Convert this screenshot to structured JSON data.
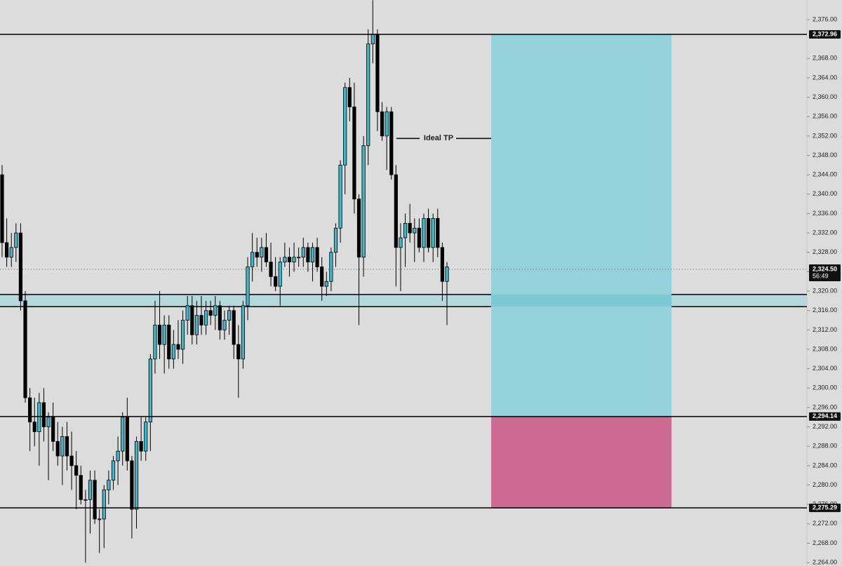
{
  "chart_data": {
    "type": "candlestick",
    "ylim": [
      2263.3,
      2380.05
    ],
    "yticks": [
      {
        "value": 2264,
        "label": "2,264.00"
      },
      {
        "value": 2268,
        "label": "2,268.00"
      },
      {
        "value": 2272,
        "label": "2,272.00"
      },
      {
        "value": 2276,
        "label": "2,276.00"
      },
      {
        "value": 2280,
        "label": "2,280.00"
      },
      {
        "value": 2284,
        "label": "2,284.00"
      },
      {
        "value": 2288,
        "label": "2,288.00"
      },
      {
        "value": 2292,
        "label": "2,292.00"
      },
      {
        "value": 2296,
        "label": "2,296.00"
      },
      {
        "value": 2300,
        "label": "2,300.00"
      },
      {
        "value": 2304,
        "label": "2,304.00"
      },
      {
        "value": 2308,
        "label": "2,308.00"
      },
      {
        "value": 2312,
        "label": "2,312.00"
      },
      {
        "value": 2316,
        "label": "2,316.00"
      },
      {
        "value": 2320,
        "label": "2,320.00"
      },
      {
        "value": 2324,
        "label": "2,324.00"
      },
      {
        "value": 2328,
        "label": "2,328.00"
      },
      {
        "value": 2332,
        "label": "2,332.00"
      },
      {
        "value": 2336,
        "label": "2,336.00"
      },
      {
        "value": 2340,
        "label": "2,340.00"
      },
      {
        "value": 2344,
        "label": "2,344.00"
      },
      {
        "value": 2348,
        "label": "2,348.00"
      },
      {
        "value": 2352,
        "label": "2,352.00"
      },
      {
        "value": 2356,
        "label": "2,356.00"
      },
      {
        "value": 2360,
        "label": "2,360.00"
      },
      {
        "value": 2364,
        "label": "2,364.00"
      },
      {
        "value": 2368,
        "label": "2,368.00"
      },
      {
        "value": 2376,
        "label": "2,376.00"
      }
    ],
    "up_color": "#3fb6c9",
    "down_color": "#000000",
    "candles": [
      [
        2344,
        2346,
        2327,
        2330
      ],
      [
        2330,
        2335,
        2325,
        2327
      ],
      [
        2327,
        2332,
        2325,
        2329
      ],
      [
        2329,
        2334,
        2326,
        2332
      ],
      [
        2332,
        2334,
        2316,
        2318
      ],
      [
        2318,
        2320,
        2297,
        2298
      ],
      [
        2298,
        2300,
        2287,
        2293
      ],
      [
        2293,
        2298,
        2288,
        2291
      ],
      [
        2291,
        2299,
        2284,
        2297
      ],
      [
        2297,
        2300,
        2289,
        2292
      ],
      [
        2292,
        2295,
        2281,
        2294
      ],
      [
        2294,
        2297,
        2287,
        2289
      ],
      [
        2289,
        2293,
        2284,
        2286
      ],
      [
        2286,
        2292,
        2280,
        2290
      ],
      [
        2290,
        2293,
        2283,
        2286
      ],
      [
        2286,
        2291,
        2279,
        2284
      ],
      [
        2284,
        2287,
        2275,
        2282
      ],
      [
        2282,
        2284,
        2276,
        2277
      ],
      [
        2277,
        2279,
        2264,
        2277
      ],
      [
        2277,
        2283,
        2270,
        2281
      ],
      [
        2281,
        2283,
        2272,
        2273
      ],
      [
        2273,
        2275,
        2266,
        2273
      ],
      [
        2273,
        2280,
        2267,
        2279
      ],
      [
        2279,
        2283,
        2276,
        2281
      ],
      [
        2281,
        2286,
        2279,
        2285
      ],
      [
        2285,
        2290,
        2280,
        2287
      ],
      [
        2287,
        2295,
        2284,
        2294
      ],
      [
        2294,
        2298,
        2283,
        2285
      ],
      [
        2285,
        2286,
        2269,
        2275
      ],
      [
        2275,
        2290,
        2271,
        2289
      ],
      [
        2289,
        2294,
        2285,
        2287
      ],
      [
        2287,
        2294,
        2285,
        2293
      ],
      [
        2293,
        2307,
        2287,
        2306
      ],
      [
        2306,
        2318,
        2303,
        2313
      ],
      [
        2313,
        2320,
        2306,
        2309
      ],
      [
        2309,
        2315,
        2303,
        2313
      ],
      [
        2313,
        2315,
        2304,
        2306
      ],
      [
        2306,
        2312,
        2304,
        2309
      ],
      [
        2309,
        2314,
        2306,
        2308
      ],
      [
        2308,
        2316,
        2305,
        2314
      ],
      [
        2314,
        2319,
        2311,
        2317
      ],
      [
        2317,
        2319,
        2309,
        2311
      ],
      [
        2311,
        2318,
        2309,
        2315
      ],
      [
        2315,
        2319,
        2311,
        2313
      ],
      [
        2313,
        2318,
        2311,
        2316
      ],
      [
        2316,
        2318,
        2313,
        2315
      ],
      [
        2315,
        2319,
        2312,
        2317
      ],
      [
        2317,
        2318,
        2310,
        2312
      ],
      [
        2312,
        2316,
        2310,
        2314
      ],
      [
        2314,
        2317,
        2311,
        2316
      ],
      [
        2316,
        2317,
        2306,
        2309
      ],
      [
        2309,
        2313,
        2298,
        2306
      ],
      [
        2306,
        2318,
        2304,
        2317
      ],
      [
        2317,
        2327,
        2314,
        2325
      ],
      [
        2325,
        2332,
        2322,
        2328
      ],
      [
        2328,
        2331,
        2325,
        2327
      ],
      [
        2327,
        2331,
        2324,
        2329
      ],
      [
        2329,
        2332,
        2325,
        2326
      ],
      [
        2326,
        2330,
        2321,
        2323
      ],
      [
        2323,
        2327,
        2320,
        2321
      ],
      [
        2321,
        2327,
        2317,
        2326
      ],
      [
        2326,
        2330,
        2325,
        2327
      ],
      [
        2327,
        2329,
        2323,
        2326
      ],
      [
        2326,
        2330,
        2324,
        2327
      ],
      [
        2327,
        2329,
        2325,
        2327
      ],
      [
        2327,
        2331,
        2325,
        2329
      ],
      [
        2329,
        2330,
        2324,
        2326
      ],
      [
        2326,
        2330,
        2322,
        2329
      ],
      [
        2329,
        2331,
        2324,
        2325
      ],
      [
        2325,
        2327,
        2318,
        2321
      ],
      [
        2321,
        2324,
        2319,
        2322
      ],
      [
        2322,
        2329,
        2320,
        2328
      ],
      [
        2328,
        2334,
        2325,
        2333
      ],
      [
        2333,
        2347,
        2330,
        2346
      ],
      [
        2346,
        2363,
        2340,
        2362
      ],
      [
        2362,
        2364,
        2355,
        2358
      ],
      [
        2358,
        2363,
        2336,
        2339
      ],
      [
        2339,
        2340,
        2313,
        2327
      ],
      [
        2327,
        2352,
        2323,
        2350
      ],
      [
        2350,
        2374,
        2346,
        2371
      ],
      [
        2371,
        2380,
        2367,
        2373
      ],
      [
        2373,
        2374,
        2353,
        2357
      ],
      [
        2357,
        2359,
        2351,
        2352
      ],
      [
        2352,
        2358,
        2345,
        2357
      ],
      [
        2357,
        2358,
        2343,
        2344
      ],
      [
        2344,
        2346,
        2321,
        2329
      ],
      [
        2329,
        2334,
        2320,
        2331
      ],
      [
        2331,
        2336,
        2325,
        2334
      ],
      [
        2334,
        2338,
        2330,
        2332
      ],
      [
        2332,
        2335,
        2326,
        2333
      ],
      [
        2333,
        2335,
        2328,
        2329
      ],
      [
        2329,
        2336,
        2326,
        2335
      ],
      [
        2335,
        2337,
        2328,
        2329
      ],
      [
        2329,
        2336,
        2326,
        2335
      ],
      [
        2335,
        2337,
        2327,
        2329
      ],
      [
        2329,
        2330,
        2318,
        2322
      ],
      [
        2322,
        2326,
        2313,
        2325
      ]
    ],
    "price_lines": [
      {
        "value": 2372.96,
        "label": "2,372.96"
      },
      {
        "value": 2294.14,
        "label": "2,294.14"
      },
      {
        "value": 2275.29,
        "label": "2,275.29"
      }
    ],
    "current_price": {
      "value": 2324.5,
      "label": "2,324.50",
      "countdown": "56:49"
    },
    "zone": [
      2316.8,
      2319.3
    ],
    "profit_color": "#96d2dc",
    "loss_color": "#cd6b93",
    "zone_color": "#b5d8dc",
    "annotation": {
      "text": "Ideal TP",
      "value": 2351.5
    }
  }
}
